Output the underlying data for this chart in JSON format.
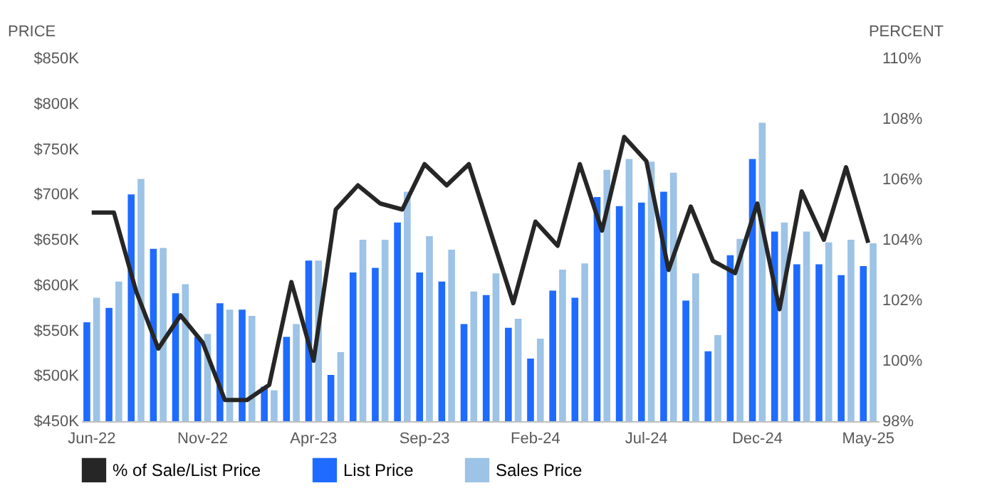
{
  "chart_data": {
    "type": "bar",
    "categories": [
      "Jun-22",
      null,
      null,
      null,
      null,
      "Nov-22",
      null,
      null,
      null,
      null,
      "Apr-23",
      null,
      null,
      null,
      null,
      "Sep-23",
      null,
      null,
      null,
      null,
      "Feb-24",
      null,
      null,
      null,
      null,
      "Jul-24",
      null,
      null,
      null,
      null,
      "Dec-24",
      null,
      null,
      null,
      null,
      "May-25"
    ],
    "series": [
      {
        "name": "% of Sale/List Price",
        "type": "line",
        "axis": "y2",
        "color": "#262626",
        "values": [
          104.9,
          104.9,
          102.3,
          100.4,
          101.5,
          100.6,
          98.7,
          98.7,
          99.2,
          102.6,
          100.0,
          105.0,
          105.8,
          105.2,
          105.0,
          106.5,
          105.8,
          106.5,
          104.2,
          101.9,
          104.6,
          103.8,
          106.5,
          104.3,
          107.4,
          106.6,
          103.0,
          105.1,
          103.3,
          102.9,
          105.2,
          101.7,
          105.6,
          104.0,
          106.4,
          103.9
        ]
      },
      {
        "name": "List Price",
        "color": "#1f6bff",
        "values": [
          559,
          575,
          700,
          640,
          591,
          543,
          580,
          573,
          488,
          543,
          627,
          501,
          614,
          619,
          669,
          614,
          604,
          557,
          589,
          553,
          519,
          594,
          586,
          697,
          687,
          691,
          703,
          583,
          527,
          633,
          739,
          659,
          623,
          623,
          611,
          621
        ]
      },
      {
        "name": "Sales Price",
        "color": "#9dc3e6",
        "values": [
          586,
          604,
          717,
          641,
          601,
          546,
          573,
          566,
          484,
          557,
          627,
          526,
          650,
          650,
          703,
          654,
          639,
          593,
          613,
          563,
          541,
          617,
          624,
          727,
          739,
          736,
          724,
          613,
          545,
          651,
          779,
          669,
          659,
          647,
          650,
          646
        ]
      }
    ],
    "ylabel": "PRICE",
    "y2label": "PERCENT",
    "ylim": [
      450,
      850
    ],
    "yticks": [
      {
        "value": 450,
        "label": "$450K"
      },
      {
        "value": 500,
        "label": "$500K"
      },
      {
        "value": 550,
        "label": "$550K"
      },
      {
        "value": 600,
        "label": "$600K"
      },
      {
        "value": 650,
        "label": "$650K"
      },
      {
        "value": 700,
        "label": "$700K"
      },
      {
        "value": 750,
        "label": "$750K"
      },
      {
        "value": 800,
        "label": "$800K"
      },
      {
        "value": 850,
        "label": "$850K"
      }
    ],
    "y2lim": [
      98,
      110
    ],
    "y2ticks": [
      {
        "value": 98,
        "label": "98%"
      },
      {
        "value": 100,
        "label": "100%"
      },
      {
        "value": 102,
        "label": "102%"
      },
      {
        "value": 104,
        "label": "104%"
      },
      {
        "value": 106,
        "label": "106%"
      },
      {
        "value": 108,
        "label": "108%"
      },
      {
        "value": 110,
        "label": "110%"
      }
    ],
    "grid": false,
    "legend": "bottom",
    "marker": "none",
    "line_style": "solid"
  }
}
